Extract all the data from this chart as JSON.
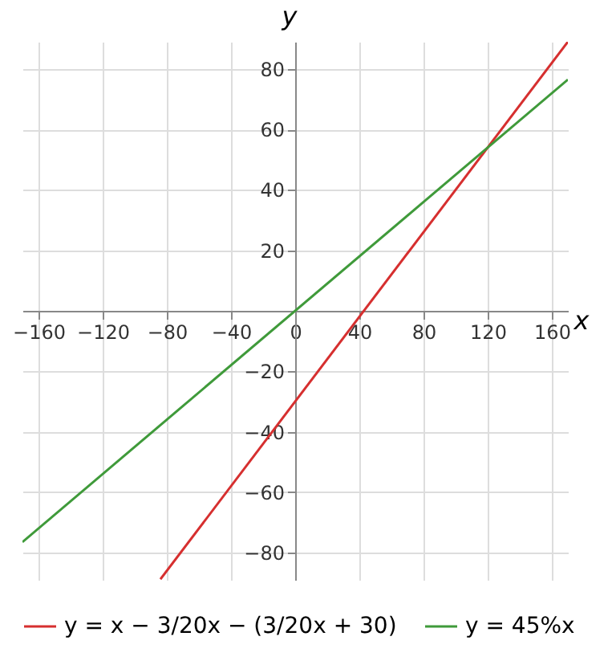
{
  "chart_data": {
    "type": "line",
    "xlabel": "x",
    "ylabel": "y",
    "xlim": [
      -170,
      170
    ],
    "ylim": [
      -89,
      89
    ],
    "xticks": [
      -160,
      -120,
      -80,
      -40,
      0,
      40,
      80,
      120,
      160
    ],
    "yticks": [
      -80,
      -60,
      -40,
      -20,
      20,
      40,
      60,
      80
    ],
    "grid": true,
    "legend": "bottom",
    "marker": "none",
    "line_style": "solid",
    "series": [
      {
        "name": "y = x − 3/20x − (3/20x + 30)",
        "color": "#d62f2f",
        "x": [
          -84,
          170
        ],
        "values": [
          -88.8,
          89
        ]
      },
      {
        "name": "y = 45%x",
        "color": "#3f9a3a",
        "x": [
          -170,
          170
        ],
        "values": [
          -76.5,
          76.5
        ]
      }
    ]
  }
}
